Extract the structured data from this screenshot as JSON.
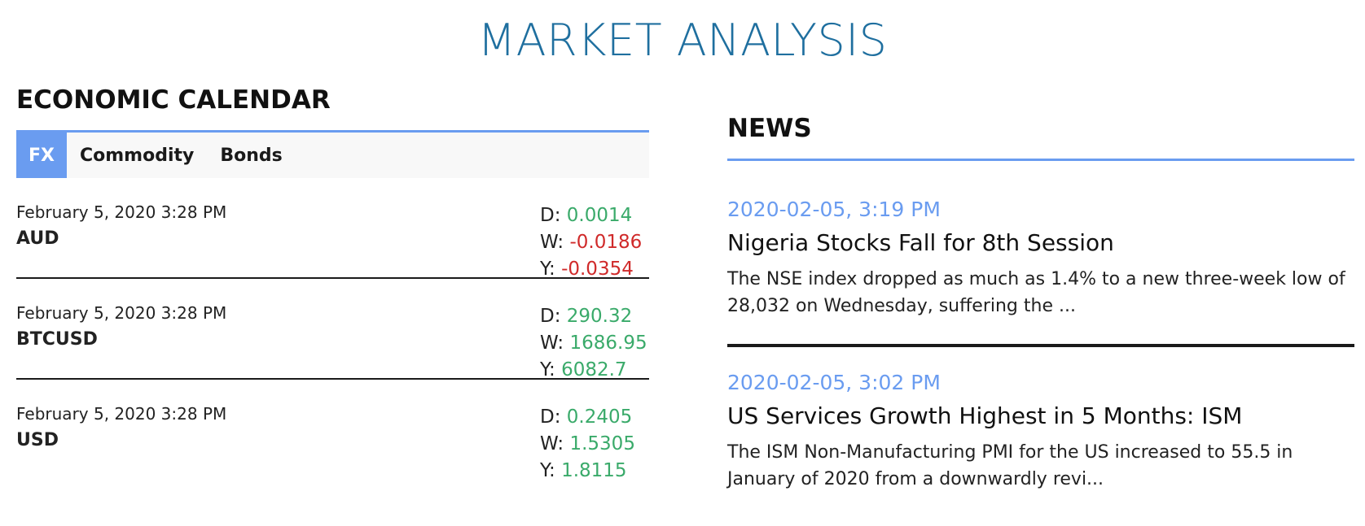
{
  "page_title": "MARKET ANALYSIS",
  "calendar": {
    "heading": "ECONOMIC CALENDAR",
    "tabs": [
      {
        "label": "FX",
        "active": true
      },
      {
        "label": "Commodity",
        "active": false
      },
      {
        "label": "Bonds",
        "active": false
      }
    ],
    "rows": [
      {
        "date": "February 5, 2020 3:28 PM",
        "symbol": "AUD",
        "d_label": "D:",
        "d_value": "0.0014",
        "w_label": "W:",
        "w_value": "-0.0186",
        "y_label": "Y:",
        "y_value": "-0.0354"
      },
      {
        "date": "February 5, 2020 3:28 PM",
        "symbol": "BTCUSD",
        "d_label": "D:",
        "d_value": "290.32",
        "w_label": "W:",
        "w_value": "1686.95",
        "y_label": "Y:",
        "y_value": "6082.7"
      },
      {
        "date": "February 5, 2020 3:28 PM",
        "symbol": "USD",
        "d_label": "D:",
        "d_value": "0.2405",
        "w_label": "W:",
        "w_value": "1.5305",
        "y_label": "Y:",
        "y_value": "1.8115"
      }
    ]
  },
  "news": {
    "heading": "NEWS",
    "items": [
      {
        "time": "2020-02-05, 3:19 PM",
        "title": "Nigeria Stocks Fall for 8th Session",
        "summary": "The NSE index dropped as much as 1.4% to a new three-week low of 28,032 on Wednesday, suffering the ..."
      },
      {
        "time": "2020-02-05, 3:02 PM",
        "title": "US Services Growth Highest in 5 Months: ISM",
        "summary": "The ISM Non-Manufacturing PMI for the US increased to 55.5 in January of 2020 from a downwardly revi..."
      }
    ]
  },
  "colors": {
    "title_blue": "#1f6f9f",
    "accent_blue": "#6a9cf0",
    "positive_green": "#3aaa6a",
    "negative_red": "#d02a2a"
  }
}
